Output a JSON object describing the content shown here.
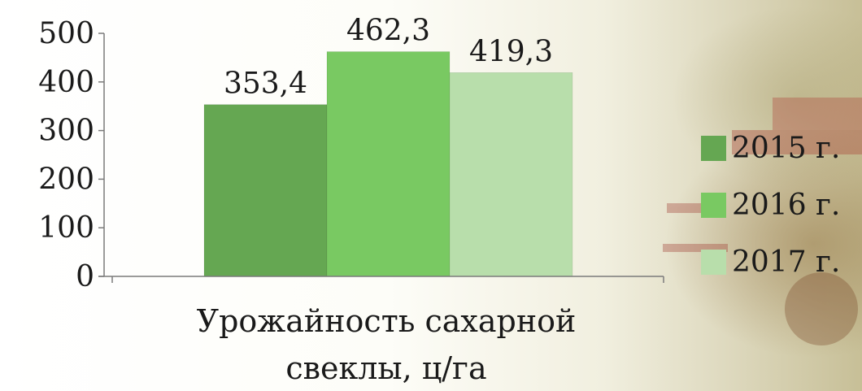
{
  "chart_data": {
    "type": "bar",
    "categories": [
      "Урожайность сахарной свеклы, ц/га"
    ],
    "xlabel_lines": [
      "Урожайность сахарной",
      "свеклы, ц/га"
    ],
    "series": [
      {
        "name": "2015 г.",
        "values": [
          353.4
        ],
        "label": "353,4",
        "color": "#65a752"
      },
      {
        "name": "2016 г.",
        "values": [
          462.3
        ],
        "label": "462,3",
        "color": "#79c962"
      },
      {
        "name": "2017 г.",
        "values": [
          419.3
        ],
        "label": "419,3",
        "color": "#b8deab"
      }
    ],
    "ylim": [
      0,
      500
    ],
    "yticks": [
      0,
      100,
      200,
      300,
      400,
      500
    ],
    "grid": false,
    "legend": "right"
  }
}
